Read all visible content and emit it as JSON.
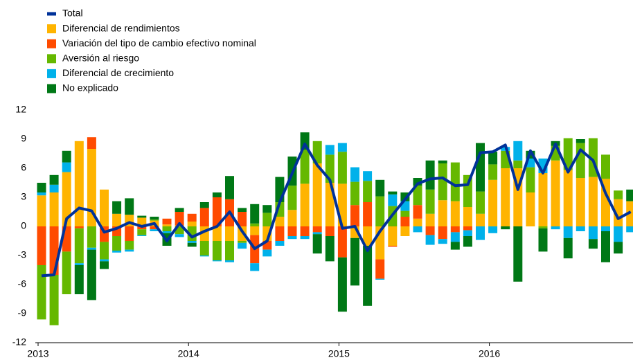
{
  "chart_data": {
    "type": "bar",
    "stacked": true,
    "categories": [
      "2013",
      null,
      null,
      null,
      null,
      null,
      null,
      null,
      null,
      null,
      null,
      null,
      "2014",
      null,
      null,
      null,
      null,
      null,
      null,
      null,
      null,
      null,
      null,
      null,
      "2015",
      null,
      null,
      null,
      null,
      null,
      null,
      null,
      null,
      null,
      null,
      null,
      "2016",
      null,
      null,
      null,
      null,
      null,
      null,
      null,
      null,
      null,
      null,
      null
    ],
    "ylim": [
      -12,
      12
    ],
    "yticks": [
      -12,
      -9,
      -6,
      -3,
      0,
      3,
      6,
      9,
      12
    ],
    "grid": false,
    "legend": "top-left",
    "series": [
      {
        "name": "Total",
        "type": "line",
        "color": "#003299",
        "values": [
          -5.1,
          -5.0,
          0.8,
          1.9,
          1.6,
          -0.6,
          -0.2,
          0.4,
          0.0,
          0.3,
          -1.5,
          0.3,
          -1.1,
          -0.5,
          0.0,
          1.5,
          -0.5,
          -2.3,
          -1.5,
          2.5,
          5.5,
          8.5,
          6.3,
          4.8,
          -0.2,
          0.0,
          -2.5,
          -0.5,
          1.2,
          2.8,
          4.4,
          4.9,
          5.0,
          4.2,
          4.3,
          7.6,
          7.7,
          8.4,
          3.8,
          7.8,
          5.5,
          8.5,
          5.6,
          7.9,
          6.8,
          3.4,
          0.8,
          1.5
        ]
      },
      {
        "name": "Diferencial de rendimientos",
        "color": "#FFB400",
        "values": [
          3.2,
          3.5,
          5.6,
          8.8,
          8.0,
          3.8,
          1.3,
          1.2,
          0.9,
          0.6,
          0.2,
          0.1,
          0.5,
          -1.5,
          -1.5,
          -1.5,
          -1.5,
          -0.9,
          -1.5,
          1.0,
          1.7,
          4.4,
          6.5,
          4.5,
          4.4,
          -1.2,
          -2.0,
          -3.4,
          -2.0,
          -1.0,
          0.8,
          1.3,
          2.7,
          2.6,
          2.0,
          1.3,
          4.8,
          6.0,
          6.0,
          3.5,
          5.5,
          6.8,
          5.8,
          5.0,
          5.1,
          4.9,
          2.8,
          2.6
        ]
      },
      {
        "name": "Variación del tipo de cambio efectivo nominal",
        "color": "#FF4B00",
        "values": [
          -4.0,
          -5.0,
          -2.6,
          -0.2,
          1.2,
          -1.6,
          -1.0,
          -1.5,
          -0.3,
          -0.3,
          0.6,
          1.4,
          0.8,
          1.9,
          3.0,
          2.8,
          1.5,
          -2.9,
          -0.9,
          -1.5,
          -1.0,
          -1.0,
          -0.6,
          -1.0,
          -3.2,
          2.2,
          2.5,
          -2.0,
          -0.1,
          1.0,
          1.4,
          -0.9,
          -1.3,
          -0.6,
          -0.4,
          0.0,
          0.0,
          0.0,
          0.0,
          0.0,
          0.0,
          0.0,
          0.0,
          0.0,
          0.0,
          0.0,
          0.0,
          0.0
        ]
      },
      {
        "name": "Aversión al riesgo",
        "color": "#65B800",
        "values": [
          -5.6,
          -5.2,
          -4.4,
          -3.6,
          -2.2,
          -1.8,
          -1.5,
          -0.9,
          -0.6,
          0.1,
          -0.5,
          -0.8,
          -1.5,
          -1.5,
          -2.0,
          -2.0,
          -0.2,
          0.3,
          1.4,
          1.5,
          2.5,
          3.5,
          2.3,
          2.9,
          3.3,
          2.4,
          2.2,
          3.1,
          2.1,
          0.6,
          2.0,
          2.5,
          3.8,
          4.0,
          3.3,
          2.3,
          1.6,
          1.8,
          0.8,
          2.6,
          -0.2,
          1.5,
          3.3,
          3.6,
          4.0,
          2.5,
          0.9,
          0.0
        ]
      },
      {
        "name": "Diferencial de crecimiento",
        "color": "#00B1EA",
        "values": [
          0.3,
          0.8,
          1.0,
          -0.2,
          -0.2,
          -0.2,
          -0.2,
          -0.2,
          -0.1,
          -0.2,
          -0.2,
          -0.3,
          -0.2,
          -0.1,
          -0.1,
          -0.2,
          -0.6,
          -0.8,
          -0.7,
          -0.5,
          -0.3,
          -0.3,
          -0.2,
          1.0,
          0.9,
          1.5,
          1.0,
          -0.1,
          1.2,
          1.0,
          -0.6,
          -1.0,
          -0.5,
          -1.0,
          -0.6,
          -1.4,
          -0.7,
          0.4,
          2.0,
          0.9,
          1.5,
          -0.3,
          -1.2,
          -0.5,
          -1.3,
          -0.5,
          -1.6,
          -0.6
        ]
      },
      {
        "name": "No explicado",
        "color": "#007816",
        "values": [
          1.0,
          1.0,
          1.2,
          -3.0,
          -5.2,
          -0.8,
          1.3,
          1.7,
          0.2,
          0.3,
          -1.3,
          0.4,
          -0.4,
          0.6,
          0.5,
          2.4,
          0.4,
          2.0,
          0.8,
          2.6,
          3.0,
          1.8,
          -2.0,
          -2.6,
          -5.6,
          -4.9,
          -6.2,
          1.7,
          0.3,
          0.9,
          0.8,
          3.0,
          0.3,
          -0.8,
          -1.1,
          5.0,
          1.3,
          -0.3,
          -5.7,
          0.8,
          -2.4,
          0.5,
          -2.1,
          0.4,
          -1.0,
          -3.2,
          -1.2,
          1.2
        ]
      }
    ]
  }
}
